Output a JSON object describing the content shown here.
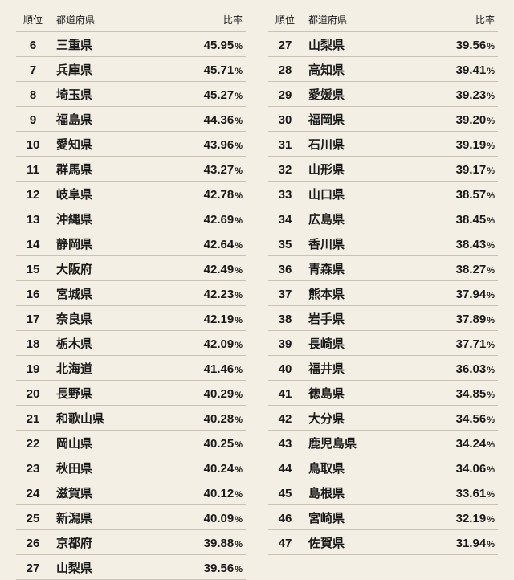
{
  "type": "table",
  "background_color": "#f3efe4",
  "border_color": "#c8c3b5",
  "text_color": "#1a1a1a",
  "header_fontsize": 12,
  "rank_fontsize": 15,
  "pref_fontsize": 15,
  "ratio_fontsize": 15,
  "pct_fontsize": 11,
  "pct_suffix": "%",
  "headers": {
    "rank": "順位",
    "pref": "都道府県",
    "ratio": "比率"
  },
  "left": [
    {
      "rank": 6,
      "pref": "三重県",
      "ratio": "45.95"
    },
    {
      "rank": 7,
      "pref": "兵庫県",
      "ratio": "45.71"
    },
    {
      "rank": 8,
      "pref": "埼玉県",
      "ratio": "45.27"
    },
    {
      "rank": 9,
      "pref": "福島県",
      "ratio": "44.36"
    },
    {
      "rank": 10,
      "pref": "愛知県",
      "ratio": "43.96"
    },
    {
      "rank": 11,
      "pref": "群馬県",
      "ratio": "43.27"
    },
    {
      "rank": 12,
      "pref": "岐阜県",
      "ratio": "42.78"
    },
    {
      "rank": 13,
      "pref": "沖縄県",
      "ratio": "42.69"
    },
    {
      "rank": 14,
      "pref": "静岡県",
      "ratio": "42.64"
    },
    {
      "rank": 15,
      "pref": "大阪府",
      "ratio": "42.49"
    },
    {
      "rank": 16,
      "pref": "宮城県",
      "ratio": "42.23"
    },
    {
      "rank": 17,
      "pref": "奈良県",
      "ratio": "42.19"
    },
    {
      "rank": 18,
      "pref": "栃木県",
      "ratio": "42.09"
    },
    {
      "rank": 19,
      "pref": "北海道",
      "ratio": "41.46"
    },
    {
      "rank": 20,
      "pref": "長野県",
      "ratio": "40.29"
    },
    {
      "rank": 21,
      "pref": "和歌山県",
      "ratio": "40.28"
    },
    {
      "rank": 22,
      "pref": "岡山県",
      "ratio": "40.25"
    },
    {
      "rank": 23,
      "pref": "秋田県",
      "ratio": "40.24"
    },
    {
      "rank": 24,
      "pref": "滋賀県",
      "ratio": "40.12"
    },
    {
      "rank": 25,
      "pref": "新潟県",
      "ratio": "40.09"
    },
    {
      "rank": 26,
      "pref": "京都府",
      "ratio": "39.88"
    },
    {
      "rank": 27,
      "pref": "山梨県",
      "ratio": "39.56"
    }
  ],
  "right": [
    {
      "rank": 27,
      "pref": "山梨県",
      "ratio": "39.56"
    },
    {
      "rank": 28,
      "pref": "高知県",
      "ratio": "39.41"
    },
    {
      "rank": 29,
      "pref": "愛媛県",
      "ratio": "39.23"
    },
    {
      "rank": 30,
      "pref": "福岡県",
      "ratio": "39.20"
    },
    {
      "rank": 31,
      "pref": "石川県",
      "ratio": "39.19"
    },
    {
      "rank": 32,
      "pref": "山形県",
      "ratio": "39.17"
    },
    {
      "rank": 33,
      "pref": "山口県",
      "ratio": "38.57"
    },
    {
      "rank": 34,
      "pref": "広島県",
      "ratio": "38.45"
    },
    {
      "rank": 35,
      "pref": "香川県",
      "ratio": "38.43"
    },
    {
      "rank": 36,
      "pref": "青森県",
      "ratio": "38.27"
    },
    {
      "rank": 37,
      "pref": "熊本県",
      "ratio": "37.94"
    },
    {
      "rank": 38,
      "pref": "岩手県",
      "ratio": "37.89"
    },
    {
      "rank": 39,
      "pref": "長崎県",
      "ratio": "37.71"
    },
    {
      "rank": 40,
      "pref": "福井県",
      "ratio": "36.03"
    },
    {
      "rank": 41,
      "pref": "徳島県",
      "ratio": "34.85"
    },
    {
      "rank": 42,
      "pref": "大分県",
      "ratio": "34.56"
    },
    {
      "rank": 43,
      "pref": "鹿児島県",
      "ratio": "34.24"
    },
    {
      "rank": 44,
      "pref": "鳥取県",
      "ratio": "34.06"
    },
    {
      "rank": 45,
      "pref": "島根県",
      "ratio": "33.61"
    },
    {
      "rank": 46,
      "pref": "宮崎県",
      "ratio": "32.19"
    },
    {
      "rank": 47,
      "pref": "佐賀県",
      "ratio": "31.94"
    }
  ]
}
